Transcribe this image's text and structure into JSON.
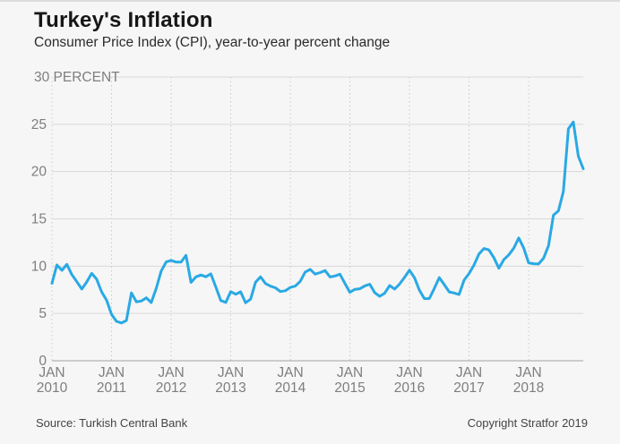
{
  "header": {
    "title": "Turkey's Inflation",
    "subtitle": "Consumer Price Index (CPI), year-to-year percent change"
  },
  "footer": {
    "source": "Source: Turkish Central Bank",
    "copyright": "Copyright Stratfor 2019"
  },
  "colors": {
    "line": "#29a9e4",
    "grid": "#d9d9d9",
    "baseline": "#a3a3a3",
    "dotted_grid": "#c9c9c9",
    "axis_text": "#7e7e7e",
    "background": "#f6f6f6"
  },
  "chart_data": {
    "type": "line",
    "title": "Turkey's Inflation",
    "subtitle": "Consumer Price Index (CPI), year-to-year percent change",
    "unit": "percent",
    "ylabel": "PERCENT",
    "ytick_top_label": "30 PERCENT",
    "yticks": [
      0,
      5,
      10,
      15,
      20,
      25,
      30
    ],
    "ylim": [
      0,
      30
    ],
    "grid": true,
    "legend": false,
    "x_range": {
      "start": "Jan 2010",
      "end": "Dec 2018",
      "interval": "monthly"
    },
    "xticks": [
      {
        "month": "JAN",
        "year": "2010"
      },
      {
        "month": "JAN",
        "year": "2011"
      },
      {
        "month": "JAN",
        "year": "2012"
      },
      {
        "month": "JAN",
        "year": "2013"
      },
      {
        "month": "JAN",
        "year": "2014"
      },
      {
        "month": "JAN",
        "year": "2015"
      },
      {
        "month": "JAN",
        "year": "2016"
      },
      {
        "month": "JAN",
        "year": "2017"
      },
      {
        "month": "JAN",
        "year": "2018"
      }
    ],
    "series": [
      {
        "name": "CPI year-to-year percent change",
        "values": [
          8.19,
          10.13,
          9.56,
          10.19,
          9.1,
          8.37,
          7.58,
          8.33,
          9.24,
          8.62,
          7.29,
          6.4,
          4.9,
          4.16,
          3.99,
          4.26,
          7.17,
          6.24,
          6.31,
          6.65,
          6.15,
          7.66,
          9.48,
          10.45,
          10.61,
          10.43,
          10.43,
          11.14,
          8.28,
          8.87,
          9.07,
          8.88,
          9.19,
          7.8,
          6.37,
          6.16,
          7.31,
          7.03,
          7.29,
          6.13,
          6.51,
          8.3,
          8.88,
          8.17,
          7.88,
          7.71,
          7.32,
          7.4,
          7.75,
          7.89,
          8.39,
          9.38,
          9.66,
          9.16,
          9.32,
          9.54,
          8.86,
          8.96,
          9.15,
          8.17,
          7.24,
          7.55,
          7.61,
          7.91,
          8.09,
          7.2,
          6.81,
          7.14,
          7.95,
          7.58,
          8.1,
          8.81,
          9.58,
          8.78,
          7.46,
          6.57,
          6.58,
          7.64,
          8.79,
          8.05,
          7.28,
          7.16,
          7.0,
          8.53,
          9.22,
          10.13,
          11.29,
          11.87,
          11.72,
          10.9,
          9.79,
          10.68,
          11.2,
          11.9,
          12.98,
          11.92,
          10.35,
          10.26,
          10.23,
          10.85,
          12.15,
          15.39,
          15.85,
          17.9,
          24.52,
          25.24,
          21.62,
          20.3
        ]
      }
    ]
  }
}
